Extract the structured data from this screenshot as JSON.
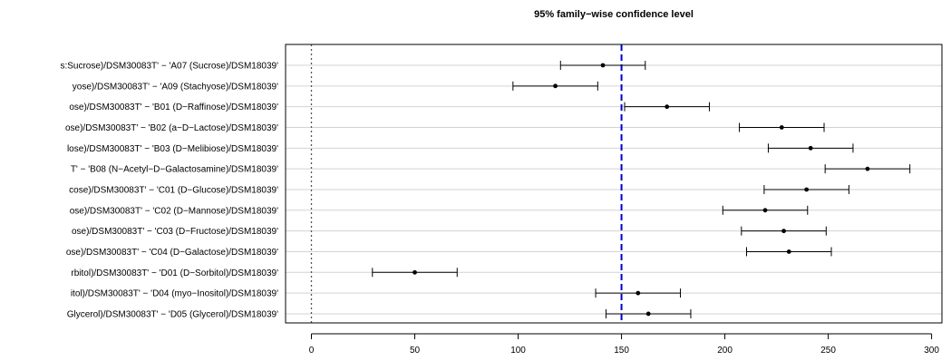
{
  "chart_data": {
    "type": "interval",
    "title": "95% family−wise confidence level",
    "xlim": [
      -12.5,
      305
    ],
    "xticks": [
      0,
      50,
      100,
      150,
      200,
      250,
      300
    ],
    "zero_line": 0,
    "reference_line": 150,
    "grid": true,
    "colors": {
      "reference_line": "#0000cc",
      "zero_line": "#555555",
      "grid": "#d3d3d3",
      "interval": "#000000"
    },
    "rows": [
      {
        "label": "s:Sucrose)/DSM30083T' − 'A07 (Sucrose)/DSM18039'",
        "estimate": 141,
        "lower": 120.5,
        "upper": 161.5
      },
      {
        "label": "yose)/DSM30083T' − 'A09 (Stachyose)/DSM18039'",
        "estimate": 118,
        "lower": 97.5,
        "upper": 138.5
      },
      {
        "label": "ose)/DSM30083T' − 'B01 (D−Raffinose)/DSM18039'",
        "estimate": 172,
        "lower": 151.5,
        "upper": 192.5
      },
      {
        "label": "ose)/DSM30083T' − 'B02 (a−D−Lactose)/DSM18039'",
        "estimate": 227.5,
        "lower": 207,
        "upper": 248
      },
      {
        "label": "lose)/DSM30083T' − 'B03 (D−Melibiose)/DSM18039'",
        "estimate": 241.5,
        "lower": 221,
        "upper": 262
      },
      {
        "label": "T' − 'B08 (N−Acetyl−D−Galactosamine)/DSM18039'",
        "estimate": 269,
        "lower": 248.5,
        "upper": 289.5
      },
      {
        "label": "cose)/DSM30083T' − 'C01 (D−Glucose)/DSM18039'",
        "estimate": 239.5,
        "lower": 219,
        "upper": 260
      },
      {
        "label": "ose)/DSM30083T' − 'C02 (D−Mannose)/DSM18039'",
        "estimate": 219.5,
        "lower": 199,
        "upper": 240
      },
      {
        "label": "ose)/DSM30083T' − 'C03 (D−Fructose)/DSM18039'",
        "estimate": 228.5,
        "lower": 208,
        "upper": 249
      },
      {
        "label": "ose)/DSM30083T' − 'C04 (D−Galactose)/DSM18039'",
        "estimate": 231,
        "lower": 210.5,
        "upper": 251.5
      },
      {
        "label": "rbitol)/DSM30083T' − 'D01 (D−Sorbitol)/DSM18039'",
        "estimate": 50,
        "lower": 29.5,
        "upper": 70.5
      },
      {
        "label": "itol)/DSM30083T' − 'D04 (myo−Inositol)/DSM18039'",
        "estimate": 158,
        "lower": 137.5,
        "upper": 178.5
      },
      {
        "label": "Glycerol)/DSM30083T' − 'D05 (Glycerol)/DSM18039'",
        "estimate": 163,
        "lower": 142.5,
        "upper": 183.5
      }
    ]
  }
}
